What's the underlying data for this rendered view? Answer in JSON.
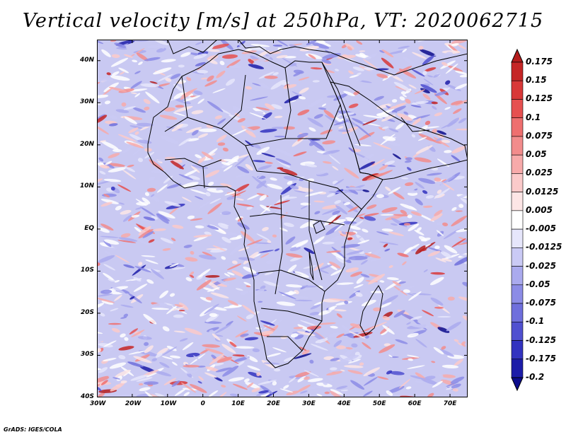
{
  "title": "Vertical velocity [m/s] at 250hPa, VT: 2020062715",
  "credit": "GrADS: IGES/COLA",
  "map": {
    "lon_ticks": [
      "30W",
      "20W",
      "10W",
      "0",
      "10E",
      "20E",
      "30E",
      "40E",
      "50E",
      "60E",
      "70E"
    ],
    "lat_ticks": [
      "40N",
      "30N",
      "20N",
      "10N",
      "EQ",
      "10S",
      "20S",
      "30S",
      "40S"
    ],
    "lon_range": [
      -30,
      75
    ],
    "lat_range": [
      -40,
      45
    ]
  },
  "colorbar": {
    "labels": [
      "0.175",
      "0.15",
      "0.125",
      "0.1",
      "0.075",
      "0.05",
      "0.025",
      "0.0125",
      "0.005",
      "-0.005",
      "-0.0125",
      "-0.025",
      "-0.05",
      "-0.075",
      "-0.1",
      "-0.125",
      "-0.175",
      "-0.2"
    ],
    "colors": [
      "#b41c1c",
      "#c52626",
      "#d83838",
      "#e65050",
      "#ee6f6f",
      "#f28c8c",
      "#f7aaaa",
      "#fbcaca",
      "#fde6e6",
      "#ffffff",
      "#e6e6fb",
      "#cacaf5",
      "#aaaaee",
      "#8c8ce6",
      "#6f6fdc",
      "#5050d0",
      "#3333c0",
      "#1c1ca8",
      "#0c0c8c"
    ]
  }
}
